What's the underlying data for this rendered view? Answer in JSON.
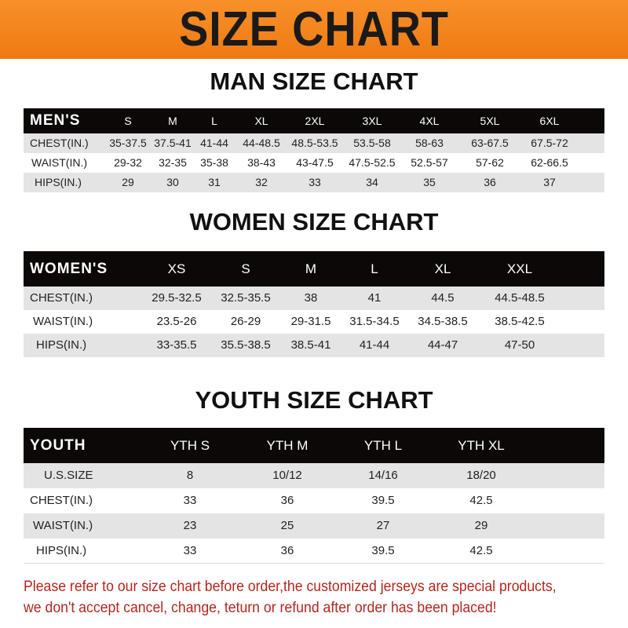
{
  "banner": {
    "title": "SIZE CHART",
    "color": "#f0801a"
  },
  "men": {
    "title": "MAN SIZE CHART",
    "header": "MEN'S",
    "sizes": [
      "S",
      "M",
      "L",
      "XL",
      "2XL",
      "3XL",
      "4XL",
      "5XL",
      "6XL"
    ],
    "rows": [
      {
        "label": "CHEST(IN.)",
        "values": [
          "35-37.5",
          "37.5-41",
          "41-44",
          "44-48.5",
          "48.5-53.5",
          "53.5-58",
          "58-63",
          "63-67.5",
          "67.5-72"
        ]
      },
      {
        "label": "WAIST(IN.)",
        "values": [
          "29-32",
          "32-35",
          "35-38",
          "38-43",
          "43-47.5",
          "47.5-52.5",
          "52.5-57",
          "57-62",
          "62-66.5"
        ]
      },
      {
        "label": "HIPS(IN.)",
        "values": [
          "29",
          "30",
          "31",
          "32",
          "33",
          "34",
          "35",
          "36",
          "37"
        ]
      }
    ]
  },
  "women": {
    "title": "WOMEN SIZE CHART",
    "header": "WOMEN'S",
    "sizes": [
      "XS",
      "S",
      "M",
      "L",
      "XL",
      "XXL"
    ],
    "rows": [
      {
        "label": "CHEST(IN.)",
        "values": [
          "29.5-32.5",
          "32.5-35.5",
          "38",
          "41",
          "44.5",
          "44.5-48.5"
        ]
      },
      {
        "label": "WAIST(IN.)",
        "values": [
          "23.5-26",
          "26-29",
          "29-31.5",
          "31.5-34.5",
          "34.5-38.5",
          "38.5-42.5"
        ]
      },
      {
        "label": "HIPS(IN.)",
        "values": [
          "33-35.5",
          "35.5-38.5",
          "38.5-41",
          "41-44",
          "44-47",
          "47-50"
        ]
      }
    ]
  },
  "youth": {
    "title": "YOUTH SIZE CHART",
    "header": "YOUTH",
    "sizes": [
      "YTH S",
      "YTH M",
      "YTH L",
      "YTH XL"
    ],
    "rows": [
      {
        "label": "U.S.SIZE",
        "values": [
          "8",
          "10/12",
          "14/16",
          "18/20"
        ]
      },
      {
        "label": "CHEST(IN.)",
        "values": [
          "33",
          "36",
          "39.5",
          "42.5"
        ]
      },
      {
        "label": "WAIST(IN.)",
        "values": [
          "23",
          "25",
          "27",
          "29"
        ]
      },
      {
        "label": "HIPS(IN.)",
        "values": [
          "33",
          "36",
          "39.5",
          "42.5"
        ]
      }
    ]
  },
  "footer": {
    "line1": "Please refer to our size chart before order,the customized jerseys are special products,",
    "line2": "we don't accept cancel, change, teturn or refund after order has been placed!"
  }
}
